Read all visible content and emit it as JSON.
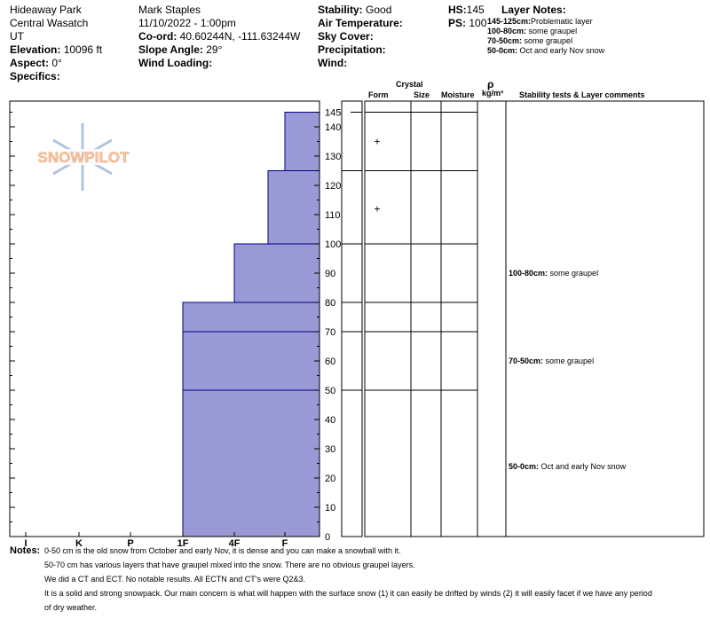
{
  "header": {
    "location": "Hideaway Park",
    "range": "Central Wasatch",
    "state": "UT",
    "elevation_label": "Elevation:",
    "elevation_value": "10096 ft",
    "aspect_label": "Aspect:",
    "aspect_value": "0°",
    "specifics_label": "Specifics:",
    "observer": "Mark Staples",
    "datetime": "11/10/2022 - 1:00pm",
    "coord_label": "Co-ord:",
    "coord_value": "40.60244N, -111.63244W",
    "slope_label": "Slope Angle:",
    "slope_value": "29°",
    "wind_loading_label": "Wind Loading:",
    "stability_label": "Stability:",
    "stability_value": "Good",
    "air_temp_label": "Air Temperature:",
    "sky_cover_label": "Sky Cover:",
    "precip_label": "Precipitation:",
    "wind_label": "Wind:",
    "hs_label": "HS:",
    "hs_value": "145",
    "ps_label": "PS:",
    "ps_value": "100",
    "layer_notes_title": "Layer Notes:",
    "layer_notes": [
      {
        "range": "145-125cm:",
        "text": "Problematic layer"
      },
      {
        "range": "100-80cm:",
        "text": " some graupel"
      },
      {
        "range": "70-50cm:",
        "text": " some graupel"
      },
      {
        "range": "50-0cm:",
        "text": " Oct and early Nov snow"
      }
    ]
  },
  "columns": {
    "crystal": "Crystal",
    "form": "Form",
    "size": "Size",
    "moisture": "Moisture",
    "rho": "ρ",
    "rho_units": "kg/m³",
    "stability": "Stability tests & Layer comments"
  },
  "logo_text": "SNOWPILOT",
  "chart_data": {
    "type": "bar",
    "hardness_scale": [
      "I",
      "K",
      "P",
      "1F",
      "4F",
      "F"
    ],
    "depth_ticks": [
      0,
      10,
      20,
      30,
      40,
      50,
      60,
      70,
      80,
      90,
      100,
      110,
      120,
      130,
      140,
      145
    ],
    "ylim": [
      0,
      145
    ],
    "fill_color": "#9999d6",
    "line_color": "#00008b",
    "layers": [
      {
        "top": 145,
        "bottom": 125,
        "hardness": "F"
      },
      {
        "top": 125,
        "bottom": 100,
        "hardness": "F+"
      },
      {
        "top": 100,
        "bottom": 80,
        "hardness": "4F"
      },
      {
        "top": 80,
        "bottom": 70,
        "hardness": "1F"
      },
      {
        "top": 70,
        "bottom": 50,
        "hardness": "1F"
      },
      {
        "top": 50,
        "bottom": 0,
        "hardness": "1F"
      }
    ],
    "crystal_marks": [
      {
        "depth": 135,
        "symbol": "+"
      },
      {
        "depth": 112,
        "symbol": "+"
      }
    ],
    "layer_comments": [
      {
        "depth": 90,
        "range": "100-80cm:",
        "text": " some graupel"
      },
      {
        "depth": 60,
        "range": "70-50cm:",
        "text": " some graupel"
      },
      {
        "depth": 24,
        "range": "50-0cm:",
        "text": " Oct and early Nov snow"
      }
    ]
  },
  "notes": {
    "label": "Notes:",
    "lines": [
      "0-50 cm is the old snow from October and early Nov, it is dense and you can make a snowball with it.",
      "50-70 cm has various layers that have graupel mixed into the snow. There are no obvious graupel layers.",
      "We did a CT and ECT. No notable results. All ECTN and CT's were Q2&3.",
      "It is a solid and strong snowpack. Our main concern is what will happen with the surface snow (1) it can easily be drifted by winds (2) it will easily facet if we have any period",
      "of dry weather."
    ]
  }
}
